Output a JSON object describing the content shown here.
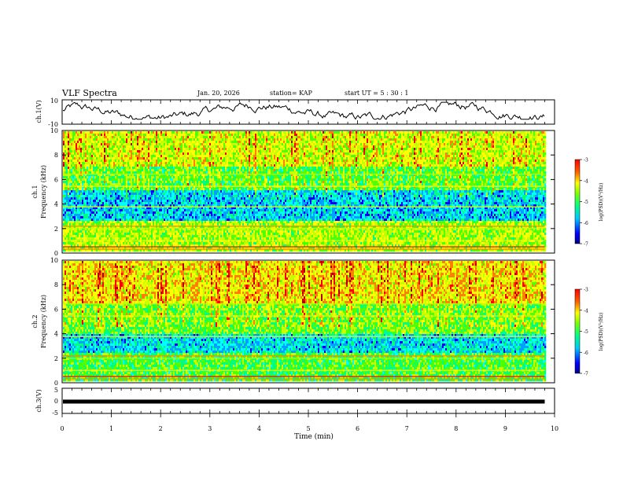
{
  "header": {
    "title": "VLF Spectra",
    "date": "Jan. 20, 2026",
    "station": "station= KAP",
    "start_ut": "start  UT  =   5  : 30 : 1"
  },
  "chart_data": [
    {
      "type": "line",
      "id": "ch1-waveform",
      "ylabel": "ch.1(V)",
      "ylim": [
        -10,
        10
      ],
      "yticks": [
        "10",
        "-10"
      ],
      "xlim": [
        0,
        10
      ],
      "x_end": 9.8,
      "description_values": "noisy waveform fluctuating roughly between -6 and 8 V"
    },
    {
      "type": "heatmap",
      "id": "ch1-spectrogram",
      "ylabel_line1": "ch.1",
      "ylabel_line2": "Frequency (kHz)",
      "ylim": [
        0,
        10
      ],
      "yticks": [
        "0",
        "2",
        "4",
        "6",
        "8",
        "10"
      ],
      "xlim": [
        0,
        10
      ],
      "x_end": 9.8,
      "colorbar": {
        "label": "log(PSD)(V²/Hz)",
        "range": [
          -7,
          -3
        ],
        "ticks": [
          "-3",
          "-4",
          "-5",
          "-6",
          "-7"
        ]
      }
    },
    {
      "type": "heatmap",
      "id": "ch2-spectrogram",
      "ylabel_line1": "ch.2",
      "ylabel_line2": "Frequency (kHz)",
      "ylim": [
        0,
        10
      ],
      "yticks": [
        "0",
        "2",
        "4",
        "6",
        "8",
        "10"
      ],
      "xlim": [
        0,
        10
      ],
      "x_end": 9.8,
      "colorbar": {
        "label": "log(PSD)(V²/Hz)",
        "range": [
          -7,
          -3
        ],
        "ticks": [
          "-3",
          "-4",
          "-5",
          "-6",
          "-7"
        ]
      }
    },
    {
      "type": "line",
      "id": "ch3-waveform",
      "ylabel": "ch.3(V)",
      "ylim": [
        -5,
        5
      ],
      "yticks": [
        "5",
        "0",
        "-5"
      ],
      "xlim": [
        0,
        10
      ],
      "x_end": 9.8,
      "level": -0.3
    }
  ],
  "xaxis": {
    "label": "Time (min)",
    "ticks": [
      "0",
      "1",
      "2",
      "3",
      "4",
      "5",
      "6",
      "7",
      "8",
      "9",
      "10"
    ]
  },
  "colors": {
    "palette": [
      "#00008c",
      "#0000ff",
      "#00a0ff",
      "#00ffff",
      "#00ff80",
      "#50ff00",
      "#c8ff00",
      "#ffff00",
      "#ff8000",
      "#ff0000",
      "#b00000"
    ]
  }
}
